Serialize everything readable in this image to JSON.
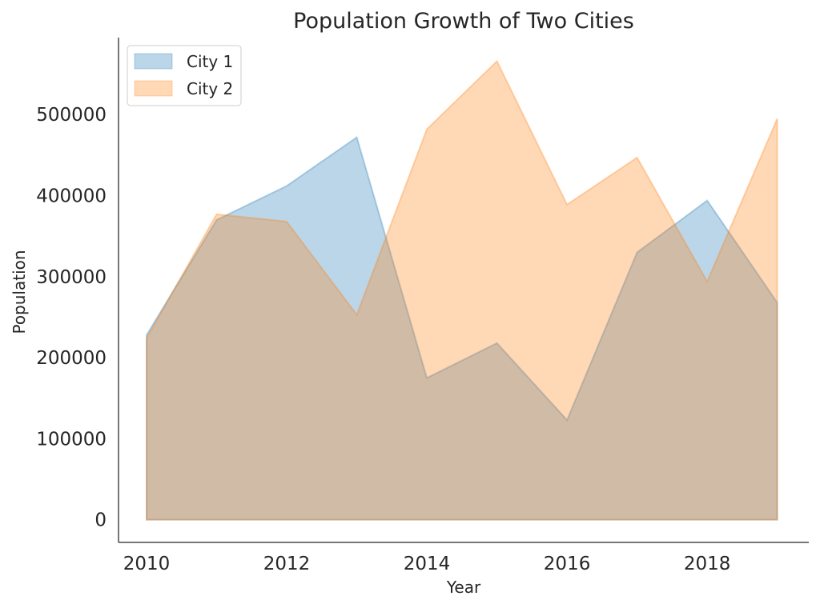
{
  "chart_data": {
    "type": "area",
    "title": "Population Growth of Two Cities",
    "xlabel": "Year",
    "ylabel": "Population",
    "x": [
      2010,
      2011,
      2012,
      2013,
      2014,
      2015,
      2016,
      2017,
      2018,
      2019
    ],
    "xlim": [
      2009.6,
      2019.45
    ],
    "ylim": [
      -28000,
      595000
    ],
    "x_ticks": [
      2010,
      2012,
      2014,
      2016,
      2018
    ],
    "y_ticks": [
      0,
      100000,
      200000,
      300000,
      400000,
      500000
    ],
    "grid": false,
    "legend_position": "top-left",
    "series": [
      {
        "name": "City 1",
        "color": "#1f77b4",
        "values": [
          228000,
          370000,
          412000,
          472000,
          175000,
          218000,
          123000,
          330000,
          394000,
          268000
        ]
      },
      {
        "name": "City 2",
        "color": "#ff7f0e",
        "values": [
          224000,
          377000,
          368000,
          253000,
          482000,
          566000,
          389000,
          447000,
          294000,
          495000
        ]
      }
    ]
  }
}
